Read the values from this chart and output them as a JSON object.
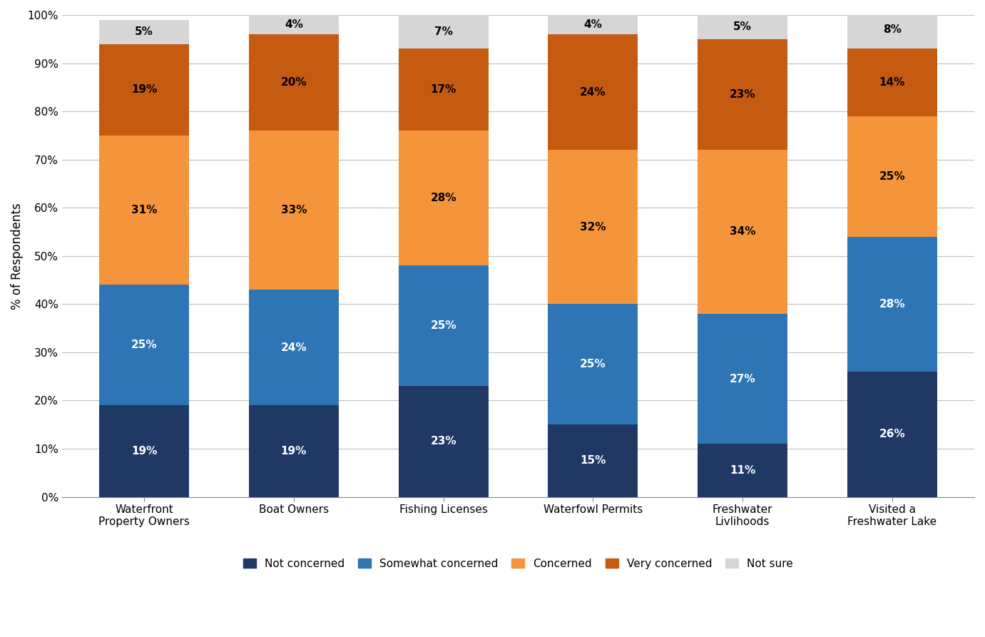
{
  "categories": [
    "Waterfront\nProperty Owners",
    "Boat Owners",
    "Fishing Licenses",
    "Waterfowl Permits",
    "Freshwater\nLivlihoods",
    "Visited a\nFreshwater Lake"
  ],
  "series": [
    {
      "label": "Not concerned",
      "color": "#1f3864",
      "values": [
        19,
        19,
        23,
        15,
        11,
        26
      ],
      "text_color": "white"
    },
    {
      "label": "Somewhat concerned",
      "color": "#2e75b6",
      "values": [
        25,
        24,
        25,
        25,
        27,
        28
      ],
      "text_color": "white"
    },
    {
      "label": "Concerned",
      "color": "#f5953b",
      "values": [
        31,
        33,
        28,
        32,
        34,
        25
      ],
      "text_color": "black"
    },
    {
      "label": "Very concerned",
      "color": "#c55a11",
      "values": [
        19,
        20,
        17,
        24,
        23,
        14
      ],
      "text_color": "black"
    },
    {
      "label": "Not sure",
      "color": "#d6d6d6",
      "values": [
        5,
        4,
        7,
        4,
        5,
        8
      ],
      "text_color": "black"
    }
  ],
  "ylabel": "% of Respondents",
  "ylim": [
    0,
    100
  ],
  "yticks": [
    0,
    10,
    20,
    30,
    40,
    50,
    60,
    70,
    80,
    90,
    100
  ],
  "ytick_labels": [
    "0%",
    "10%",
    "20%",
    "30%",
    "40%",
    "50%",
    "60%",
    "70%",
    "80%",
    "90%",
    "100%"
  ],
  "bar_width": 0.6,
  "background_color": "#ffffff",
  "grid_color": "#c0c0c0",
  "label_fontsize": 11,
  "axis_label_fontsize": 12,
  "tick_fontsize": 11,
  "legend_fontsize": 11
}
